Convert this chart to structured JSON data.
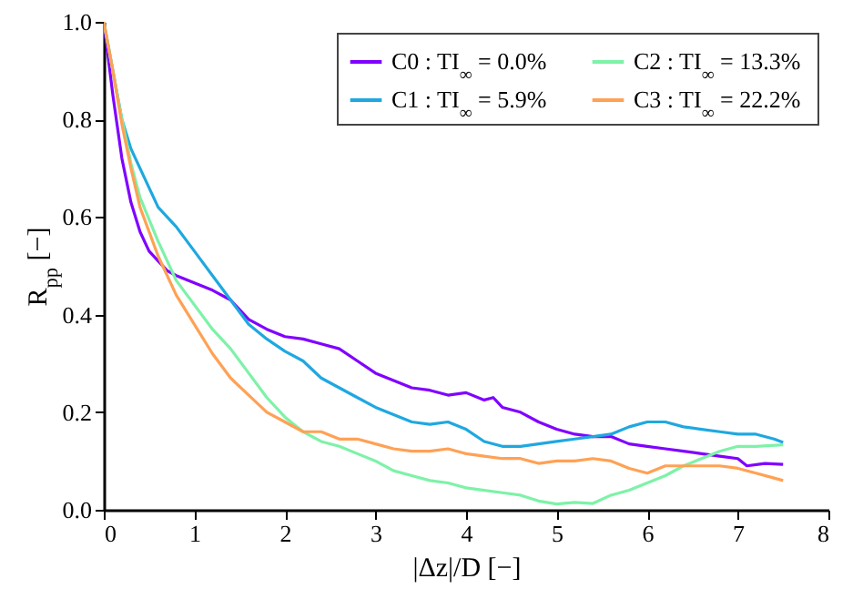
{
  "chart_data": {
    "type": "line",
    "xlabel": "|Δz|/D [−]",
    "ylabel": "R$_{pp}$ [−]",
    "xlim": [
      0,
      8
    ],
    "xticks": [
      0,
      1,
      2,
      3,
      4,
      5,
      6,
      7,
      8
    ],
    "ylim": [
      0,
      1.0
    ],
    "yticks": [
      {
        "value": 0,
        "label": "0.0"
      },
      0.2,
      0.4,
      0.6,
      0.8,
      {
        "value": 1,
        "label": "1.0"
      }
    ],
    "grid": false,
    "legend": "top right",
    "marker": "none",
    "line_style": "solid",
    "series": [
      {
        "name": "C0 : TI$_{∞}$ = 0.0%",
        "color": "#8000ff",
        "x": [
          0,
          0.1,
          0.2,
          0.3,
          0.4,
          0.5,
          0.6,
          0.7,
          0.8,
          1.0,
          1.2,
          1.4,
          1.6,
          1.8,
          2.0,
          2.2,
          2.4,
          2.6,
          2.8,
          3.0,
          3.2,
          3.4,
          3.6,
          3.8,
          4.0,
          4.2,
          4.3,
          4.4,
          4.6,
          4.8,
          5.0,
          5.2,
          5.4,
          5.6,
          5.8,
          6.0,
          6.2,
          6.4,
          6.6,
          6.8,
          7.0,
          7.1,
          7.3,
          7.5
        ],
        "values": [
          1.0,
          0.85,
          0.72,
          0.63,
          0.57,
          0.53,
          0.51,
          0.49,
          0.48,
          0.465,
          0.45,
          0.43,
          0.39,
          0.37,
          0.355,
          0.35,
          0.34,
          0.33,
          0.305,
          0.28,
          0.265,
          0.25,
          0.245,
          0.235,
          0.24,
          0.225,
          0.23,
          0.21,
          0.2,
          0.18,
          0.165,
          0.155,
          0.15,
          0.15,
          0.135,
          0.13,
          0.125,
          0.12,
          0.115,
          0.11,
          0.105,
          0.09,
          0.095,
          0.093
        ]
      },
      {
        "name": "C1 : TI$_{∞}$ = 5.9%",
        "color": "#1fa8e0",
        "x": [
          0,
          0.1,
          0.2,
          0.3,
          0.4,
          0.6,
          0.8,
          1.0,
          1.2,
          1.4,
          1.6,
          1.8,
          2.0,
          2.2,
          2.4,
          2.6,
          2.8,
          3.0,
          3.2,
          3.4,
          3.6,
          3.8,
          4.0,
          4.2,
          4.4,
          4.6,
          4.8,
          5.0,
          5.2,
          5.4,
          5.6,
          5.8,
          6.0,
          6.2,
          6.4,
          6.6,
          6.8,
          7.0,
          7.2,
          7.4,
          7.5
        ],
        "values": [
          1.0,
          0.9,
          0.8,
          0.74,
          0.7,
          0.62,
          0.58,
          0.53,
          0.48,
          0.43,
          0.38,
          0.35,
          0.325,
          0.305,
          0.27,
          0.25,
          0.23,
          0.21,
          0.195,
          0.18,
          0.175,
          0.18,
          0.165,
          0.14,
          0.13,
          0.13,
          0.135,
          0.14,
          0.145,
          0.15,
          0.155,
          0.17,
          0.18,
          0.18,
          0.17,
          0.165,
          0.16,
          0.155,
          0.155,
          0.145,
          0.138
        ]
      },
      {
        "name": "C2 : TI$_{∞}$ = 13.3%",
        "color": "#7df2a8",
        "x": [
          0,
          0.1,
          0.2,
          0.3,
          0.4,
          0.6,
          0.8,
          1.0,
          1.2,
          1.4,
          1.6,
          1.8,
          2.0,
          2.2,
          2.4,
          2.6,
          2.8,
          3.0,
          3.2,
          3.4,
          3.6,
          3.8,
          4.0,
          4.2,
          4.4,
          4.6,
          4.8,
          5.0,
          5.2,
          5.4,
          5.6,
          5.8,
          6.0,
          6.2,
          6.4,
          6.6,
          6.8,
          7.0,
          7.2,
          7.5
        ],
        "values": [
          1.0,
          0.9,
          0.8,
          0.71,
          0.64,
          0.55,
          0.47,
          0.42,
          0.37,
          0.33,
          0.28,
          0.23,
          0.19,
          0.16,
          0.14,
          0.13,
          0.115,
          0.1,
          0.08,
          0.07,
          0.06,
          0.055,
          0.045,
          0.04,
          0.035,
          0.03,
          0.018,
          0.012,
          0.015,
          0.013,
          0.03,
          0.04,
          0.055,
          0.07,
          0.09,
          0.105,
          0.12,
          0.13,
          0.13,
          0.133
        ]
      },
      {
        "name": "C3 : TI$_{∞}$ = 22.2%",
        "color": "#ffa155",
        "x": [
          0,
          0.1,
          0.2,
          0.3,
          0.4,
          0.6,
          0.8,
          1.0,
          1.2,
          1.4,
          1.6,
          1.8,
          2.0,
          2.2,
          2.4,
          2.6,
          2.8,
          3.0,
          3.2,
          3.4,
          3.6,
          3.8,
          4.0,
          4.2,
          4.4,
          4.6,
          4.8,
          5.0,
          5.2,
          5.4,
          5.6,
          5.8,
          6.0,
          6.2,
          6.4,
          6.6,
          6.8,
          7.0,
          7.2,
          7.4,
          7.5
        ],
        "values": [
          1.0,
          0.9,
          0.79,
          0.7,
          0.62,
          0.52,
          0.44,
          0.38,
          0.32,
          0.27,
          0.235,
          0.2,
          0.18,
          0.16,
          0.16,
          0.145,
          0.145,
          0.135,
          0.125,
          0.12,
          0.12,
          0.125,
          0.115,
          0.11,
          0.105,
          0.105,
          0.095,
          0.1,
          0.1,
          0.105,
          0.1,
          0.085,
          0.075,
          0.09,
          0.09,
          0.09,
          0.09,
          0.085,
          0.075,
          0.065,
          0.06
        ]
      }
    ]
  }
}
